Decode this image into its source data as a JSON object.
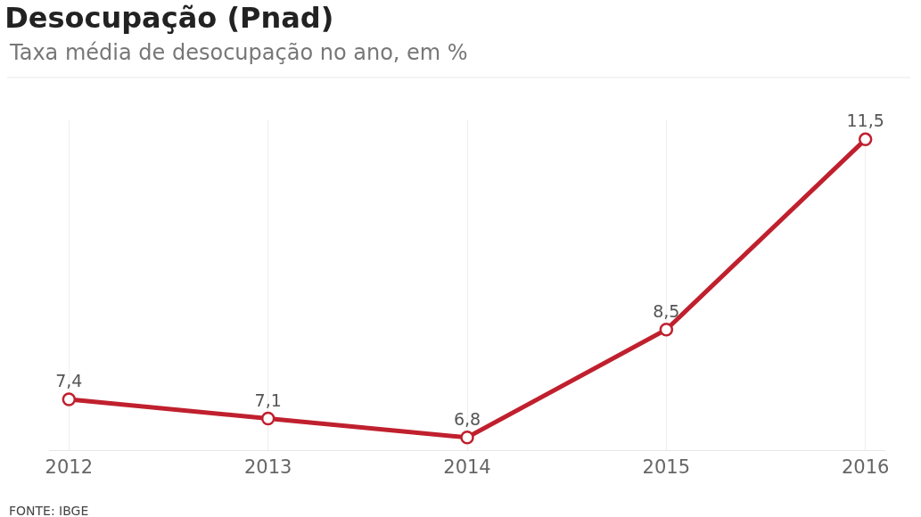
{
  "chart_data": {
    "type": "line",
    "title": "Desocupação (Pnad)",
    "subtitle": "Taxa média de desocupação no ano, em %",
    "categories": [
      "2012",
      "2013",
      "2014",
      "2015",
      "2016"
    ],
    "series": [
      {
        "color": "#c0202e",
        "values": [
          7.4,
          7.1,
          6.8,
          8.5,
          11.5
        ],
        "value_labels": [
          "7,4",
          "7,1",
          "6,8",
          "8,5",
          "11,5"
        ]
      }
    ],
    "ylim": [
      6.6,
      11.8
    ],
    "grid": "x",
    "marker": "circle",
    "line_style": "solid",
    "annotations": [
      "FONTE: IBGE"
    ]
  }
}
